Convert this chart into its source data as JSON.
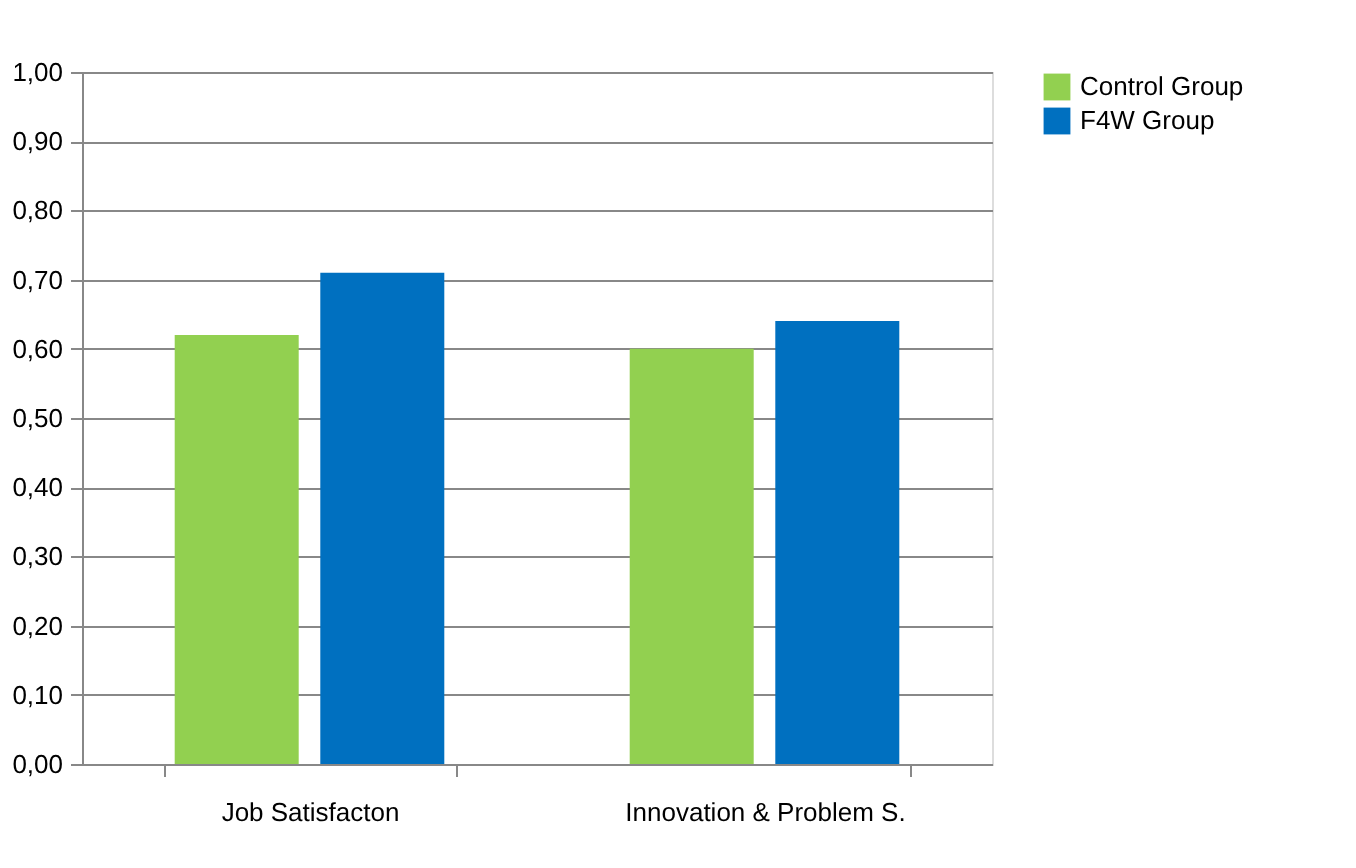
{
  "chart_data": {
    "type": "bar",
    "categories": [
      "Job Satisfacton",
      "Innovation & Problem S."
    ],
    "series": [
      {
        "name": "Control Group",
        "color": "#92d050",
        "values": [
          0.62,
          0.6
        ]
      },
      {
        "name": "F4W Group",
        "color": "#0070c0",
        "values": [
          0.71,
          0.64
        ]
      }
    ],
    "ylim": [
      0,
      1
    ],
    "yticks": [
      {
        "value": 0,
        "label": "0,00"
      },
      {
        "value": 0.1,
        "label": "0,10"
      },
      {
        "value": 0.2,
        "label": "0,20"
      },
      {
        "value": 0.3,
        "label": "0,30"
      },
      {
        "value": 0.4,
        "label": "0,40"
      },
      {
        "value": 0.5,
        "label": "0,50"
      },
      {
        "value": 0.6,
        "label": "0,60"
      },
      {
        "value": 0.7,
        "label": "0,70"
      },
      {
        "value": 0.8,
        "label": "0,80"
      },
      {
        "value": 0.9,
        "label": "0,90"
      },
      {
        "value": 1,
        "label": "1,00"
      }
    ],
    "grid": "y",
    "legend": "right"
  }
}
